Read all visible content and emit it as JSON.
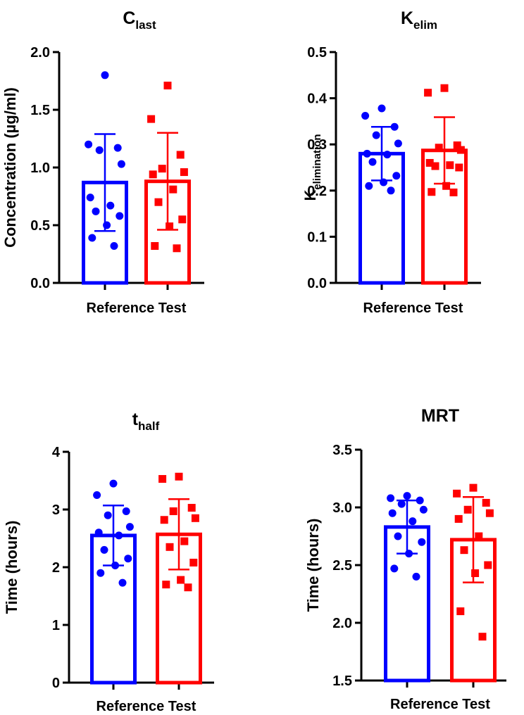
{
  "chart_data": [
    {
      "type": "bar",
      "title_main": "C",
      "title_sub": "last",
      "ylabel_main": "Concentration (µg/ml)",
      "ylabel_sub": "",
      "xlabel": "Reference Test",
      "ylim": [
        0,
        2.0
      ],
      "yticks": [
        "0.0",
        "0.5",
        "1.0",
        "1.5",
        "2.0"
      ],
      "series": [
        {
          "name": "Reference",
          "color": "#0000ff",
          "marker": "circle",
          "mean": 0.87,
          "sd": 0.42,
          "points": [
            1.8,
            1.2,
            1.17,
            1.15,
            1.03,
            0.74,
            0.67,
            0.62,
            0.58,
            0.5,
            0.39,
            0.32
          ]
        },
        {
          "name": "Test",
          "color": "#ff0000",
          "marker": "square",
          "mean": 0.88,
          "sd": 0.42,
          "points": [
            1.71,
            1.42,
            1.11,
            0.99,
            0.96,
            0.94,
            0.81,
            0.7,
            0.55,
            0.49,
            0.32,
            0.3
          ]
        }
      ]
    },
    {
      "type": "bar",
      "title_main": "K",
      "title_sub": "elim",
      "ylabel_main": "K",
      "ylabel_sub": "elimination",
      "xlabel": "Reference Test",
      "ylim": [
        0,
        0.5
      ],
      "yticks": [
        "0.0",
        "0.1",
        "0.2",
        "0.3",
        "0.4",
        "0.5"
      ],
      "series": [
        {
          "name": "Reference",
          "color": "#0000ff",
          "marker": "circle",
          "mean": 0.28,
          "sd": 0.058,
          "points": [
            0.378,
            0.362,
            0.338,
            0.32,
            0.302,
            0.28,
            0.278,
            0.262,
            0.232,
            0.218,
            0.21,
            0.2
          ]
        },
        {
          "name": "Test",
          "color": "#ff0000",
          "marker": "square",
          "mean": 0.287,
          "sd": 0.072,
          "points": [
            0.422,
            0.412,
            0.298,
            0.293,
            0.288,
            0.26,
            0.255,
            0.253,
            0.25,
            0.21,
            0.197,
            0.196
          ]
        }
      ]
    },
    {
      "type": "bar",
      "title_main": "t",
      "title_sub": "half",
      "ylabel_main": "Time (hours)",
      "ylabel_sub": "",
      "xlabel": "Reference Test",
      "ylim": [
        0,
        4
      ],
      "yticks": [
        "0",
        "1",
        "2",
        "3",
        "4"
      ],
      "series": [
        {
          "name": "Reference",
          "color": "#0000ff",
          "marker": "circle",
          "mean": 2.55,
          "sd": 0.52,
          "points": [
            3.45,
            3.25,
            2.97,
            2.9,
            2.7,
            2.6,
            2.55,
            2.3,
            2.15,
            2.03,
            1.9,
            1.73
          ]
        },
        {
          "name": "Test",
          "color": "#ff0000",
          "marker": "square",
          "mean": 2.57,
          "sd": 0.61,
          "points": [
            3.57,
            3.53,
            3.03,
            2.97,
            2.85,
            2.82,
            2.45,
            2.35,
            2.08,
            1.78,
            1.7,
            1.65
          ]
        }
      ]
    },
    {
      "type": "bar",
      "title_main": "MRT",
      "title_sub": "",
      "ylabel_main": "Time (hours)",
      "ylabel_sub": "",
      "xlabel": "Reference Test",
      "ylim": [
        1.5,
        3.5
      ],
      "yticks": [
        "1.5",
        "2.0",
        "2.5",
        "3.0",
        "3.5"
      ],
      "series": [
        {
          "name": "Reference",
          "color": "#0000ff",
          "marker": "circle",
          "mean": 2.83,
          "sd": 0.23,
          "points": [
            3.1,
            3.08,
            3.06,
            3.03,
            2.98,
            2.95,
            2.88,
            2.75,
            2.7,
            2.6,
            2.47,
            2.4
          ]
        },
        {
          "name": "Test",
          "color": "#ff0000",
          "marker": "square",
          "mean": 2.72,
          "sd": 0.37,
          "points": [
            3.17,
            3.12,
            3.04,
            2.98,
            2.95,
            2.9,
            2.75,
            2.63,
            2.5,
            2.43,
            2.1,
            1.88
          ]
        }
      ]
    }
  ]
}
